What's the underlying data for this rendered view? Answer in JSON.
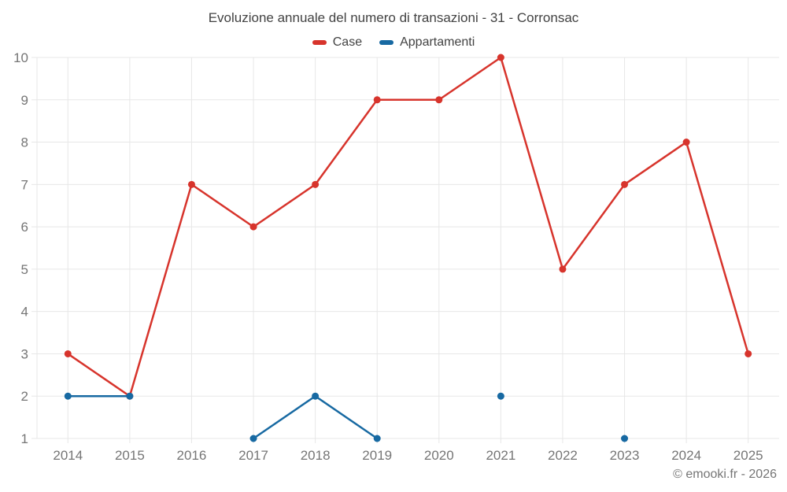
{
  "chart_data": {
    "type": "line",
    "title": "Evoluzione annuale del numero di transazioni - 31 - Corronsac",
    "x": [
      "2014",
      "2015",
      "2016",
      "2017",
      "2018",
      "2019",
      "2020",
      "2021",
      "2022",
      "2023",
      "2024",
      "2025"
    ],
    "series": [
      {
        "name": "Case",
        "color": "#d7342c",
        "values": [
          3,
          2,
          7,
          6,
          7,
          9,
          9,
          10,
          5,
          7,
          8,
          3
        ]
      },
      {
        "name": "Appartamenti",
        "color": "#1769a2",
        "values": [
          2,
          2,
          null,
          1,
          2,
          1,
          null,
          2,
          null,
          1,
          null,
          null
        ]
      }
    ],
    "ylim": [
      1,
      10
    ],
    "yticks": [
      1,
      2,
      3,
      4,
      5,
      6,
      7,
      8,
      9,
      10
    ],
    "grid": true,
    "legend_position": "top"
  },
  "colors": {
    "grid": "#e7e7e7",
    "axis_label": "#757575",
    "title": "#424242"
  },
  "footer": {
    "text": "© emooki.fr - 2026"
  }
}
